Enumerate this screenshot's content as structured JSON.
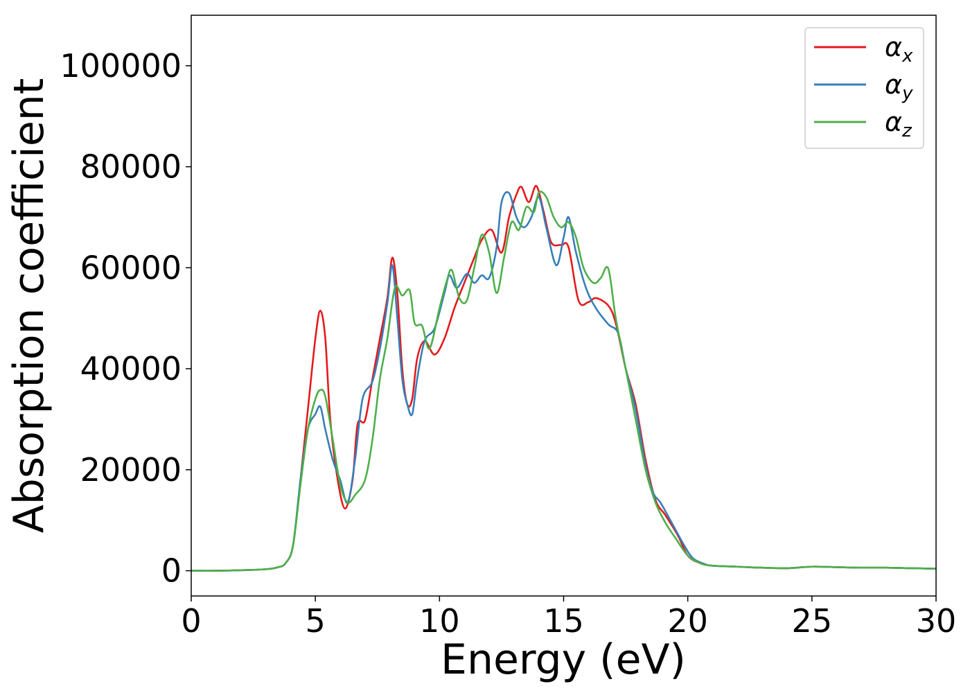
{
  "chart_data": {
    "type": "line",
    "xlabel": "Energy (eV)",
    "ylabel": "Absorption coefficient",
    "xlim": [
      0,
      30
    ],
    "ylim": [
      -5000,
      110000
    ],
    "xticks": [
      0,
      5,
      10,
      15,
      20,
      25,
      30
    ],
    "yticks": [
      0,
      20000,
      40000,
      60000,
      80000,
      100000
    ],
    "grid": false,
    "legend_position": "top-right",
    "series": [
      {
        "name": "α",
        "subscript": "x",
        "color": "#e41a1c",
        "points": [
          [
            0,
            0
          ],
          [
            1,
            0
          ],
          [
            2,
            100
          ],
          [
            3,
            300
          ],
          [
            3.5,
            700
          ],
          [
            3.8,
            1500
          ],
          [
            4.1,
            5000
          ],
          [
            4.4,
            18000
          ],
          [
            4.7,
            32000
          ],
          [
            5.0,
            46000
          ],
          [
            5.2,
            51500
          ],
          [
            5.4,
            46000
          ],
          [
            5.6,
            30000
          ],
          [
            5.9,
            18000
          ],
          [
            6.2,
            12300
          ],
          [
            6.5,
            18000
          ],
          [
            6.7,
            29000
          ],
          [
            7.0,
            29800
          ],
          [
            7.3,
            38000
          ],
          [
            7.6,
            46000
          ],
          [
            7.9,
            54000
          ],
          [
            8.1,
            62000
          ],
          [
            8.3,
            55000
          ],
          [
            8.5,
            40000
          ],
          [
            8.7,
            33000
          ],
          [
            8.9,
            34000
          ],
          [
            9.1,
            42000
          ],
          [
            9.4,
            45500
          ],
          [
            9.8,
            42800
          ],
          [
            10.2,
            46000
          ],
          [
            10.6,
            52000
          ],
          [
            11.0,
            57000
          ],
          [
            11.4,
            62000
          ],
          [
            11.7,
            65500
          ],
          [
            12.1,
            67500
          ],
          [
            12.5,
            63000
          ],
          [
            12.8,
            70000
          ],
          [
            13.1,
            74500
          ],
          [
            13.3,
            76000
          ],
          [
            13.6,
            73000
          ],
          [
            13.9,
            76200
          ],
          [
            14.2,
            71000
          ],
          [
            14.5,
            65000
          ],
          [
            14.9,
            64500
          ],
          [
            15.2,
            64000
          ],
          [
            15.6,
            53500
          ],
          [
            16.0,
            53200
          ],
          [
            16.3,
            54000
          ],
          [
            16.8,
            52500
          ],
          [
            17.1,
            49000
          ],
          [
            17.5,
            40000
          ],
          [
            17.9,
            33000
          ],
          [
            18.3,
            22000
          ],
          [
            18.7,
            14000
          ],
          [
            19.1,
            11000
          ],
          [
            19.6,
            7000
          ],
          [
            20.0,
            3000
          ],
          [
            20.5,
            1500
          ],
          [
            21,
            1000
          ],
          [
            22,
            800
          ],
          [
            23,
            600
          ],
          [
            24,
            500
          ],
          [
            25,
            800
          ],
          [
            26,
            700
          ],
          [
            27,
            600
          ],
          [
            28,
            600
          ],
          [
            29,
            500
          ],
          [
            30,
            400
          ]
        ]
      },
      {
        "name": "α",
        "subscript": "y",
        "color": "#377eb8",
        "points": [
          [
            0,
            0
          ],
          [
            1,
            0
          ],
          [
            2,
            100
          ],
          [
            3,
            300
          ],
          [
            3.5,
            700
          ],
          [
            3.8,
            1500
          ],
          [
            4.1,
            5000
          ],
          [
            4.4,
            18000
          ],
          [
            4.7,
            28000
          ],
          [
            5.0,
            31000
          ],
          [
            5.2,
            32500
          ],
          [
            5.4,
            28000
          ],
          [
            5.7,
            22000
          ],
          [
            6.0,
            18000
          ],
          [
            6.3,
            13500
          ],
          [
            6.6,
            22000
          ],
          [
            6.9,
            34000
          ],
          [
            7.3,
            37500
          ],
          [
            7.6,
            44000
          ],
          [
            7.9,
            53000
          ],
          [
            8.1,
            60500
          ],
          [
            8.3,
            50000
          ],
          [
            8.5,
            38000
          ],
          [
            8.7,
            33000
          ],
          [
            8.9,
            31000
          ],
          [
            9.1,
            38000
          ],
          [
            9.4,
            45500
          ],
          [
            9.8,
            48000
          ],
          [
            10.2,
            55000
          ],
          [
            10.4,
            58500
          ],
          [
            10.7,
            56000
          ],
          [
            11.1,
            58800
          ],
          [
            11.4,
            57000
          ],
          [
            11.7,
            58500
          ],
          [
            12.0,
            58000
          ],
          [
            12.3,
            64000
          ],
          [
            12.5,
            73000
          ],
          [
            12.8,
            74800
          ],
          [
            13.1,
            70000
          ],
          [
            13.4,
            68000
          ],
          [
            13.7,
            70000
          ],
          [
            14.0,
            74000
          ],
          [
            14.3,
            68000
          ],
          [
            14.7,
            60500
          ],
          [
            15.0,
            66000
          ],
          [
            15.2,
            70000
          ],
          [
            15.5,
            63000
          ],
          [
            15.9,
            56000
          ],
          [
            16.3,
            52000
          ],
          [
            16.8,
            48800
          ],
          [
            17.2,
            47000
          ],
          [
            17.5,
            40000
          ],
          [
            17.9,
            32000
          ],
          [
            18.3,
            21000
          ],
          [
            18.6,
            15500
          ],
          [
            18.9,
            13500
          ],
          [
            19.3,
            10000
          ],
          [
            19.8,
            5500
          ],
          [
            20.2,
            2500
          ],
          [
            20.7,
            1300
          ],
          [
            21,
            1000
          ],
          [
            22,
            800
          ],
          [
            23,
            600
          ],
          [
            24,
            500
          ],
          [
            25,
            800
          ],
          [
            26,
            700
          ],
          [
            27,
            600
          ],
          [
            28,
            600
          ],
          [
            29,
            500
          ],
          [
            30,
            400
          ]
        ]
      },
      {
        "name": "α",
        "subscript": "z",
        "color": "#4daf4a",
        "points": [
          [
            0,
            0
          ],
          [
            1,
            0
          ],
          [
            2,
            100
          ],
          [
            3,
            300
          ],
          [
            3.5,
            700
          ],
          [
            3.8,
            1500
          ],
          [
            4.1,
            5000
          ],
          [
            4.4,
            17000
          ],
          [
            4.7,
            28000
          ],
          [
            5.0,
            34000
          ],
          [
            5.2,
            35800
          ],
          [
            5.4,
            34500
          ],
          [
            5.7,
            26000
          ],
          [
            6.0,
            17000
          ],
          [
            6.3,
            13500
          ],
          [
            6.6,
            15000
          ],
          [
            7.0,
            18000
          ],
          [
            7.3,
            26000
          ],
          [
            7.6,
            38000
          ],
          [
            7.9,
            46000
          ],
          [
            8.2,
            56000
          ],
          [
            8.5,
            54500
          ],
          [
            8.8,
            55500
          ],
          [
            9.0,
            49000
          ],
          [
            9.3,
            48500
          ],
          [
            9.6,
            44000
          ],
          [
            10.0,
            52000
          ],
          [
            10.3,
            57500
          ],
          [
            10.5,
            59500
          ],
          [
            10.8,
            54000
          ],
          [
            11.1,
            53500
          ],
          [
            11.4,
            60000
          ],
          [
            11.7,
            66500
          ],
          [
            12.0,
            63000
          ],
          [
            12.3,
            55000
          ],
          [
            12.6,
            62000
          ],
          [
            12.9,
            69000
          ],
          [
            13.2,
            67500
          ],
          [
            13.5,
            72000
          ],
          [
            13.8,
            71000
          ],
          [
            14.0,
            74900
          ],
          [
            14.3,
            74000
          ],
          [
            14.6,
            70000
          ],
          [
            14.9,
            68000
          ],
          [
            15.2,
            69000
          ],
          [
            15.5,
            66000
          ],
          [
            15.8,
            60000
          ],
          [
            16.2,
            57000
          ],
          [
            16.5,
            58000
          ],
          [
            16.8,
            59800
          ],
          [
            17.1,
            50000
          ],
          [
            17.5,
            40000
          ],
          [
            17.9,
            30000
          ],
          [
            18.3,
            20000
          ],
          [
            18.7,
            13500
          ],
          [
            19.1,
            9500
          ],
          [
            19.5,
            6500
          ],
          [
            20.0,
            3000
          ],
          [
            20.5,
            1500
          ],
          [
            21,
            1000
          ],
          [
            22,
            800
          ],
          [
            23,
            600
          ],
          [
            24,
            500
          ],
          [
            25,
            800
          ],
          [
            26,
            700
          ],
          [
            27,
            600
          ],
          [
            28,
            600
          ],
          [
            29,
            500
          ],
          [
            30,
            400
          ]
        ]
      }
    ]
  }
}
